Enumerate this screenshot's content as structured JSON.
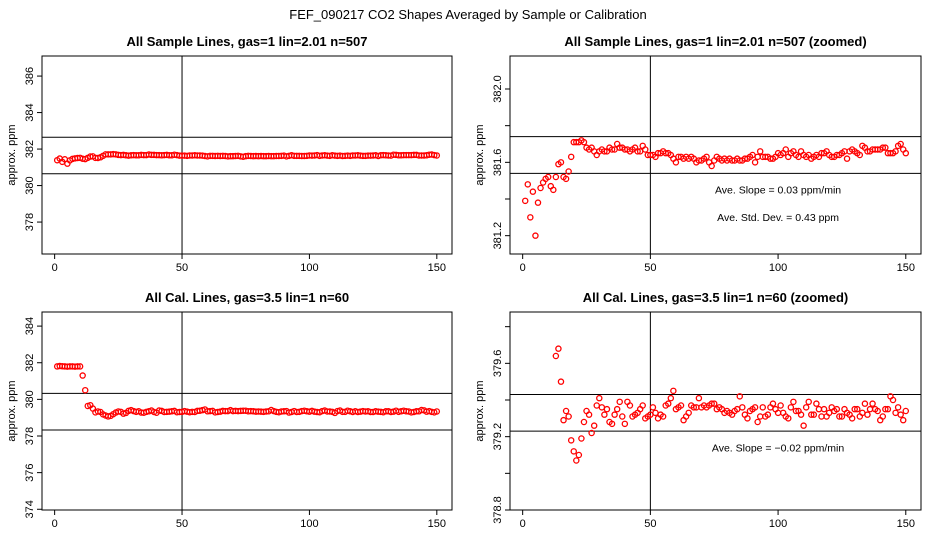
{
  "chart_data": {
    "type": "scatter",
    "title": "FEF_090217  CO2 Shapes Averaged by Sample or Calibration",
    "series": {
      "sample": [
        381.39,
        381.48,
        381.3,
        381.44,
        381.2,
        381.38,
        381.46,
        381.49,
        381.51,
        381.52,
        381.47,
        381.45,
        381.52,
        381.59,
        381.6,
        381.52,
        381.51,
        381.55,
        381.63,
        381.71,
        381.71,
        381.71,
        381.72,
        381.71,
        381.68,
        381.67,
        381.68,
        381.66,
        381.64,
        381.66,
        381.67,
        381.66,
        381.66,
        381.68,
        381.67,
        381.67,
        381.7,
        381.68,
        381.68,
        381.67,
        381.67,
        381.66,
        381.67,
        381.68,
        381.66,
        381.66,
        381.69,
        381.67,
        381.64,
        381.64,
        381.64,
        381.63,
        381.65,
        381.65,
        381.66,
        381.65,
        381.65,
        381.64,
        381.62,
        381.6,
        381.63,
        381.63,
        381.62,
        381.63,
        381.62,
        381.63,
        381.62,
        381.6,
        381.61,
        381.61,
        381.62,
        381.63,
        381.6,
        381.58,
        381.61,
        381.63,
        381.62,
        381.61,
        381.62,
        381.61,
        381.62,
        381.61,
        381.61,
        381.62,
        381.61,
        381.61,
        381.62,
        381.62,
        381.63,
        381.64,
        381.6,
        381.63,
        381.66,
        381.63,
        381.63,
        381.63,
        381.62,
        381.62,
        381.63,
        381.65,
        381.64,
        381.65,
        381.67,
        381.63,
        381.65,
        381.66,
        381.64,
        381.63,
        381.66,
        381.64,
        381.63,
        381.64,
        381.62,
        381.63,
        381.64,
        381.63,
        381.65,
        381.65,
        381.66,
        381.64,
        381.63,
        381.63,
        381.64,
        381.64,
        381.65,
        381.66,
        381.62,
        381.66,
        381.67,
        381.66,
        381.65,
        381.64,
        381.69,
        381.68,
        381.66,
        381.66,
        381.67,
        381.67,
        381.67,
        381.67,
        381.68,
        381.68,
        381.65,
        381.65,
        381.65,
        381.66,
        381.69,
        381.7,
        381.67,
        381.65
      ],
      "cal": [
        381.8,
        381.82,
        381.81,
        381.8,
        381.79,
        381.8,
        381.8,
        381.79,
        381.8,
        381.8,
        381.3,
        380.5,
        379.64,
        379.68,
        379.5,
        379.29,
        379.34,
        379.31,
        379.18,
        379.12,
        379.07,
        379.1,
        379.19,
        379.28,
        379.34,
        379.32,
        379.22,
        379.26,
        379.37,
        379.41,
        379.36,
        379.32,
        379.35,
        379.28,
        379.27,
        379.32,
        379.35,
        379.39,
        379.31,
        379.27,
        379.39,
        379.37,
        379.31,
        379.32,
        379.33,
        379.35,
        379.37,
        379.3,
        379.31,
        379.32,
        379.36,
        379.33,
        379.3,
        379.32,
        379.31,
        379.37,
        379.38,
        379.41,
        379.45,
        379.35,
        379.36,
        379.37,
        379.29,
        379.31,
        379.33,
        379.37,
        379.36,
        379.36,
        379.41,
        379.36,
        379.37,
        379.36,
        379.37,
        379.38,
        379.38,
        379.35,
        379.36,
        379.35,
        379.33,
        379.34,
        379.33,
        379.32,
        379.34,
        379.35,
        379.42,
        379.36,
        379.32,
        379.3,
        379.34,
        379.35,
        379.36,
        379.28,
        379.31,
        379.36,
        379.31,
        379.32,
        379.36,
        379.38,
        379.35,
        379.33,
        379.37,
        379.33,
        379.31,
        379.3,
        379.36,
        379.39,
        379.34,
        379.34,
        379.32,
        379.26,
        379.36,
        379.39,
        379.32,
        379.32,
        379.38,
        379.35,
        379.31,
        379.35,
        379.31,
        379.33,
        379.36,
        379.34,
        379.35,
        379.31,
        379.31,
        379.35,
        379.33,
        379.32,
        379.3,
        379.35,
        379.35,
        379.31,
        379.33,
        379.38,
        379.32,
        379.35,
        379.38,
        379.35,
        379.34,
        379.29,
        379.31,
        379.35,
        379.35,
        379.42,
        379.4,
        379.33,
        379.36,
        379.32,
        379.29,
        379.34
      ]
    },
    "panels": [
      {
        "title": "All Sample Lines, gas=1 lin=2.01 n=507",
        "ylabel": "approx. ppm",
        "series_key": "sample",
        "xlim": [
          -4.96,
          155.96
        ],
        "ylim": [
          376.25,
          387.1
        ],
        "xticks": [
          0,
          50,
          100,
          150
        ],
        "xtick_labels": [
          "0",
          "50",
          "100",
          "150"
        ],
        "yticks": [
          378,
          380,
          382,
          384,
          386
        ],
        "ytick_labels": [
          "378",
          "380",
          "382",
          "384",
          "386"
        ],
        "hlines": [
          380.65,
          382.65
        ],
        "vline": 50,
        "annotations": []
      },
      {
        "title": "All Sample Lines, gas=1 lin=2.01 n=507 (zoomed)",
        "ylabel": "approx. ppm",
        "series_key": "sample",
        "xlim": [
          -4.96,
          155.96
        ],
        "ylim": [
          381.1,
          382.18
        ],
        "xticks": [
          0,
          50,
          100,
          150
        ],
        "xtick_labels": [
          "0",
          "50",
          "100",
          "150"
        ],
        "yticks": [
          381.2,
          381.4,
          381.6,
          381.8,
          382.0
        ],
        "ytick_labels": [
          "381.2",
          "",
          "381.6",
          "",
          "382.0"
        ],
        "hlines": [
          381.54,
          381.74
        ],
        "vline": 50,
        "annotations": [
          "Ave. Slope =  0.03  ppm/min",
          "Ave. Std. Dev. =  0.43  ppm"
        ]
      },
      {
        "title": "All Cal. Lines, gas=3.5 lin=1 n=60",
        "ylabel": "approx. ppm",
        "series_key": "cal",
        "xlim": [
          -4.96,
          155.96
        ],
        "ylim": [
          373.96,
          384.77
        ],
        "xticks": [
          0,
          50,
          100,
          150
        ],
        "xtick_labels": [
          "0",
          "50",
          "100",
          "150"
        ],
        "yticks": [
          374,
          376,
          378,
          380,
          382,
          384
        ],
        "ytick_labels": [
          "374",
          "376",
          "378",
          "380",
          "382",
          "384"
        ],
        "hlines": [
          378.33,
          380.33
        ],
        "vline": 50,
        "annotations": []
      },
      {
        "title": "All Cal. Lines, gas=3.5 lin=1 n=60 (zoomed)",
        "ylabel": "approx. ppm",
        "series_key": "cal",
        "xlim": [
          -4.96,
          155.96
        ],
        "ylim": [
          378.8,
          379.88
        ],
        "xticks": [
          0,
          50,
          100,
          150
        ],
        "xtick_labels": [
          "0",
          "50",
          "100",
          "150"
        ],
        "yticks": [
          378.8,
          379.0,
          379.2,
          379.4,
          379.6,
          379.8
        ],
        "ytick_labels": [
          "378.8",
          "",
          "379.2",
          "",
          "379.6",
          ""
        ],
        "hlines": [
          379.23,
          379.43
        ],
        "vline": 50,
        "annotations": [
          "Ave. Slope =  −0.02  ppm/min"
        ]
      }
    ],
    "colors": {
      "points": "#ff0000",
      "axes": "#000000"
    }
  }
}
